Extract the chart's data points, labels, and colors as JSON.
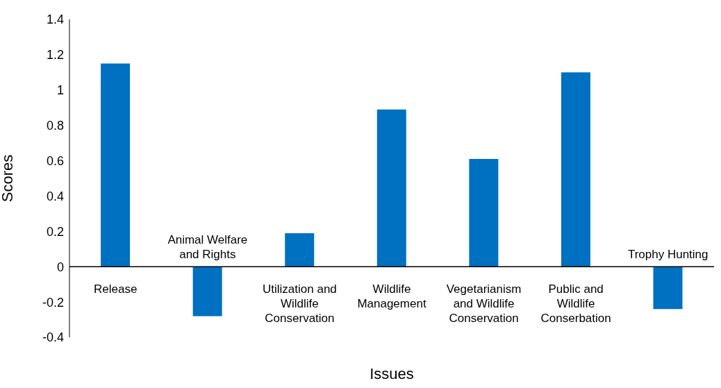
{
  "chart_data": {
    "type": "bar",
    "xlabel": "Issues",
    "ylabel": "Scores",
    "categories": [
      "Release",
      "Animal Welfare and Rights",
      "Utilization and Wildlife Conservation",
      "Wildlife Management",
      "Vegetarianism and Wildlife Conservation",
      "Public and Wildlife Conserbation",
      "Trophy Hunting"
    ],
    "values": [
      1.15,
      -0.28,
      0.19,
      0.89,
      0.61,
      1.1,
      -0.24
    ],
    "color": "#0070c0",
    "ylim": [
      -0.4,
      1.4
    ],
    "yticks": [
      -0.4,
      -0.2,
      0,
      0.2,
      0.4,
      0.6,
      0.8,
      1,
      1.2,
      1.4
    ],
    "grid": false,
    "legend": false
  }
}
